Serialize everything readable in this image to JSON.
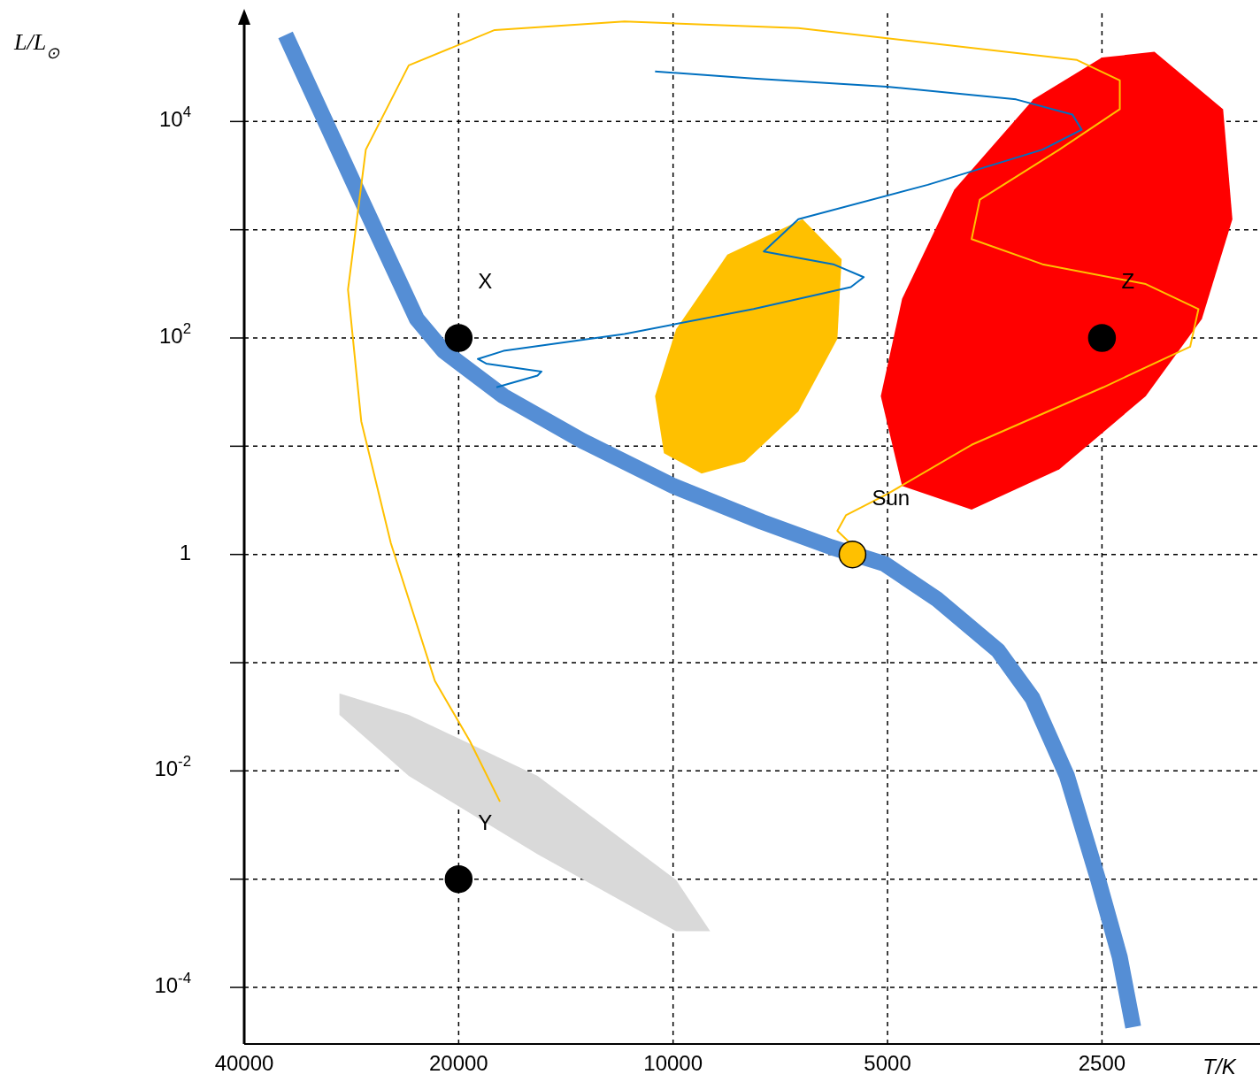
{
  "chart_data": {
    "type": "line",
    "xlabel": "T/K",
    "ylabel": "L/L$_{⊙}$",
    "xlim": [
      40000,
      1500
    ],
    "xticks": [
      40000,
      20000,
      10000,
      5000,
      2500
    ],
    "ylim": [
      3e-05,
      100000
    ],
    "yticks": [
      {
        "value": 10000,
        "label": "10$^{4}$"
      },
      {
        "value": 1000,
        "label": null
      },
      {
        "value": 100,
        "label": "10$^{2}$"
      },
      {
        "value": 10,
        "label": null
      },
      1,
      {
        "value": 0.1,
        "label": null
      },
      {
        "value": 0.01,
        "label": "10$^{-2}$"
      },
      {
        "value": 0.001,
        "label": null
      },
      {
        "value": 0.0001,
        "label": "10$^{-4}$"
      }
    ],
    "log": "xy",
    "grid": true,
    "series": [
      {
        "type": "area",
        "color": "#d9d9d9",
        "x": [
          29400,
          23500,
          15500,
          9900,
          8870,
          9900,
          15500,
          23500,
          29400
        ],
        "values": [
          0.052,
          0.033,
          0.009,
          0.00098,
          0.00033,
          0.00033,
          0.0017,
          0.009,
          0.033
        ]
      },
      {
        "type": "area",
        "color": "#ffc000",
        "x": [
          6580,
          5800,
          5880,
          6670,
          7930,
          9120,
          10300,
          10600,
          9900,
          8390
        ],
        "values": [
          1250,
          535,
          98,
          21,
          7.2,
          5.6,
          8.6,
          29,
          121,
          590
        ]
      },
      {
        "type": "area",
        "color": "#ff0000",
        "x": [
          2110,
          1690,
          1640,
          1810,
          2170,
          2870,
          3810,
          4770,
          5110,
          4770,
          4030,
          3120,
          2500
        ],
        "values": [
          44000,
          13000,
          1250,
          150,
          29,
          6.1,
          2.6,
          4.3,
          29,
          230,
          2340,
          16000,
          39000
        ]
      },
      {
        "color": "#558ed5",
        "x": [
          35000,
          27800,
          22900,
          21000,
          17300,
          13400,
          10000,
          7500,
          6000,
          5050,
          4270,
          3500,
          3130,
          2800,
          2530,
          2360,
          2260
        ],
        "values": [
          63000,
          2340,
          150,
          76,
          29,
          11.2,
          4.3,
          2.0,
          1.17,
          0.82,
          0.39,
          0.13,
          0.047,
          0.009,
          0.00098,
          0.00019,
          4.3e-05
        ]
      },
      {
        "color": "#0070c0",
        "x": [
          17700,
          15500,
          15300,
          18300,
          18800,
          17300,
          11700,
          7710,
          5630,
          5400,
          5960,
          7460,
          6670,
          4390,
          3030,
          2670,
          2750,
          3300,
          5010,
          7710,
          10600
        ],
        "values": [
          35,
          45,
          49,
          58,
          64,
          76,
          109,
          185,
          295,
          365,
          480,
          630,
          1250,
          2600,
          5500,
          8400,
          11600,
          16000,
          21000,
          25000,
          29000
        ]
      },
      {
        "color": "#ffc000",
        "x": [
          5660,
          5880,
          5720,
          5010,
          3810,
          2490,
          1880,
          1830,
          2170,
          3030,
          3810,
          3710,
          2870,
          2360,
          2360,
          2710,
          6670,
          11700,
          17800,
          23500,
          27000,
          28600,
          27400,
          24900,
          21600,
          19300,
          17500
        ],
        "values": [
          1.3,
          1.65,
          2.3,
          3.6,
          10.3,
          35,
          83,
          185,
          315,
          480,
          820,
          1900,
          5500,
          13000,
          24000,
          37000,
          73000,
          84000,
          70000,
          33000,
          5500,
          280,
          17,
          1.27,
          0.068,
          0.019,
          0.0052
        ]
      },
      {
        "type": "scatter",
        "x": [
          20000,
          20000,
          2500,
          5600
        ],
        "values": [
          100,
          0.001,
          100,
          1
        ],
        "colors": [
          "#000000",
          "#000000",
          "#000000",
          "#ffc000"
        ]
      }
    ],
    "annotations": [
      {
        "text": "X",
        "x": 20000,
        "y": 100
      },
      {
        "text": "Y",
        "x": 20000,
        "y": 0.001
      },
      {
        "text": "Z",
        "x": 2500,
        "y": 100
      },
      {
        "text": "Sun",
        "x": 5600,
        "y": 1
      }
    ]
  }
}
